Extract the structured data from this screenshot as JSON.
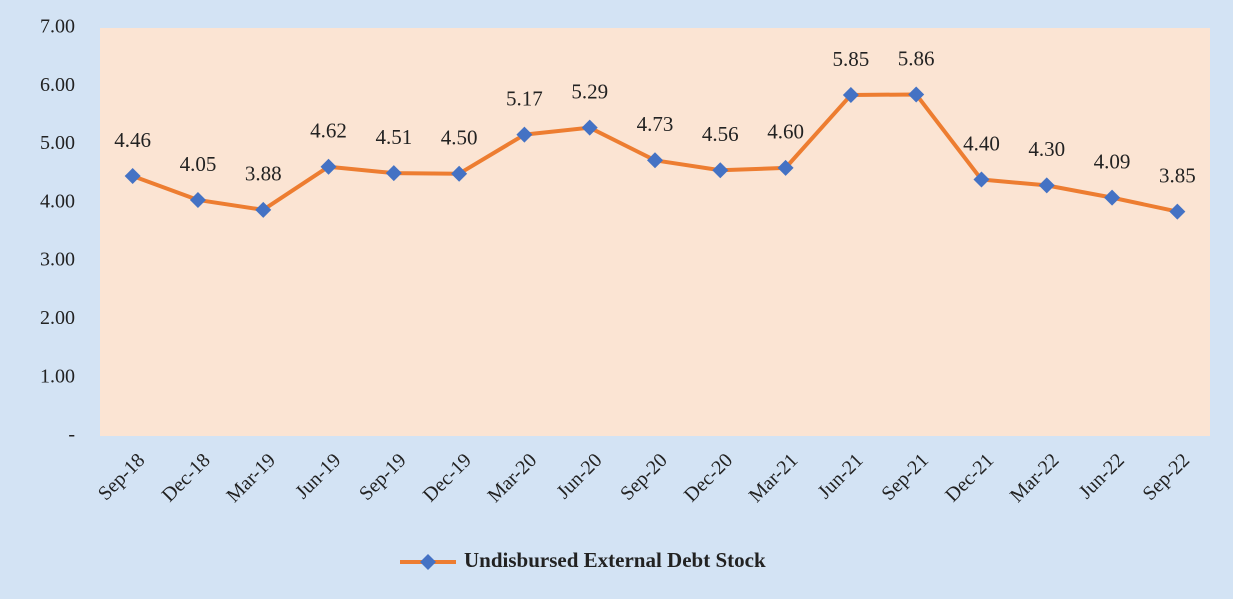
{
  "chart_data": {
    "type": "line",
    "categories": [
      "Sep-18",
      "Dec-18",
      "Mar-19",
      "Jun-19",
      "Sep-19",
      "Dec-19",
      "Mar-20",
      "Jun-20",
      "Sep-20",
      "Dec-20",
      "Mar-21",
      "Jun-21",
      "Sep-21",
      "Dec-21",
      "Mar-22",
      "Jun-22",
      "Sep-22"
    ],
    "series": [
      {
        "name": "Undisbursed External Debt Stock",
        "color": "#ed7d31",
        "marker_color": "#4472c4",
        "values": [
          4.46,
          4.05,
          3.88,
          4.62,
          4.51,
          4.5,
          5.17,
          5.29,
          4.73,
          4.56,
          4.6,
          5.85,
          5.86,
          4.4,
          4.3,
          4.09,
          3.85
        ],
        "value_labels": [
          "4.46",
          "4.05",
          "3.88",
          "4.62",
          "4.51",
          "4.50",
          "5.17",
          "5.29",
          "4.73",
          "4.56",
          "4.60",
          "5.85",
          "5.86",
          "4.40",
          "4.30",
          "4.09",
          "3.85"
        ]
      }
    ],
    "ylim": [
      0,
      7
    ],
    "yticks": [
      {
        "value": 0,
        "label": "-"
      },
      {
        "value": 1,
        "label": "1.00"
      },
      {
        "value": 2,
        "label": "2.00"
      },
      {
        "value": 3,
        "label": "3.00"
      },
      {
        "value": 4,
        "label": "4.00"
      },
      {
        "value": 5,
        "label": "5.00"
      },
      {
        "value": 6,
        "label": "6.00"
      },
      {
        "value": 7,
        "label": "7.00"
      }
    ],
    "grid": false,
    "legend": "bottom"
  }
}
